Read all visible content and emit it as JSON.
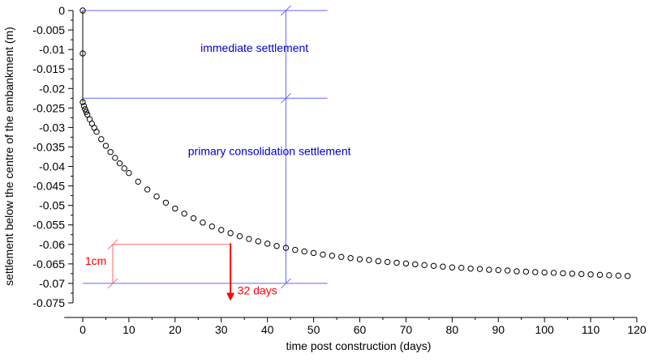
{
  "chart_data": {
    "type": "scatter",
    "title": "",
    "xlabel": "time post construction (days)",
    "ylabel": "settlement below the centre of the embankment (m)",
    "xlim": [
      -4,
      120
    ],
    "ylim": [
      -0.075,
      0
    ],
    "x_ticks": [
      0,
      10,
      20,
      30,
      40,
      50,
      60,
      70,
      80,
      90,
      100,
      110,
      120
    ],
    "x_tick_labels": [
      "0",
      "10",
      "20",
      "30",
      "40",
      "50",
      "60",
      "70",
      "80",
      "90",
      "100",
      "110",
      "120"
    ],
    "y_ticks": [
      0,
      -0.005,
      -0.01,
      -0.015,
      -0.02,
      -0.025,
      -0.03,
      -0.035,
      -0.04,
      -0.045,
      -0.05,
      -0.055,
      -0.06,
      -0.065,
      -0.07,
      -0.075
    ],
    "y_tick_labels": [
      "0",
      "-0.005",
      "-0.01",
      "-0.015",
      "-0.02",
      "-0.025",
      "-0.03",
      "-0.035",
      "-0.04",
      "-0.045",
      "-0.05",
      "-0.055",
      "-0.06",
      "-0.065",
      "-0.07",
      "-0.075"
    ],
    "grid": false,
    "series": [
      {
        "color": "#000000",
        "marker": "open-circle",
        "x": [
          0,
          0,
          0,
          0.25,
          0.5,
          0.75,
          1,
          1.5,
          2,
          2.5,
          3,
          4,
          5,
          6,
          7,
          8,
          9,
          10,
          12,
          14,
          16,
          18,
          20,
          22,
          24,
          26,
          28,
          30,
          32,
          34,
          36,
          38,
          40,
          42,
          44,
          46,
          48,
          50,
          52,
          54,
          56,
          58,
          60,
          62,
          64,
          66,
          68,
          70,
          72,
          74,
          76,
          78,
          80,
          82,
          84,
          86,
          88,
          90,
          92,
          94,
          96,
          98,
          100,
          102,
          104,
          106,
          108,
          110,
          112,
          114,
          116,
          118
        ],
        "y": [
          0,
          -0.011,
          -0.0235,
          -0.0245,
          -0.0253,
          -0.026,
          -0.0267,
          -0.0279,
          -0.029,
          -0.0301,
          -0.0311,
          -0.033,
          -0.0347,
          -0.0363,
          -0.0378,
          -0.0392,
          -0.0405,
          -0.0417,
          -0.0439,
          -0.0459,
          -0.0477,
          -0.0493,
          -0.0508,
          -0.0521,
          -0.0533,
          -0.0544,
          -0.0554,
          -0.0563,
          -0.0571,
          -0.0579,
          -0.0586,
          -0.0592,
          -0.0598,
          -0.0604,
          -0.0609,
          -0.0614,
          -0.0618,
          -0.0622,
          -0.0626,
          -0.0629,
          -0.0632,
          -0.0635,
          -0.0638,
          -0.064,
          -0.0643,
          -0.0645,
          -0.0647,
          -0.0649,
          -0.0651,
          -0.0653,
          -0.0655,
          -0.0657,
          -0.0659,
          -0.066,
          -0.0662,
          -0.0663,
          -0.0665,
          -0.0666,
          -0.0667,
          -0.0669,
          -0.067,
          -0.0671,
          -0.0672,
          -0.0673,
          -0.0674,
          -0.0675,
          -0.0676,
          -0.0677,
          -0.0678,
          -0.0679,
          -0.068,
          -0.0681
        ]
      }
    ],
    "reference_lines": [
      {
        "kind": "horizontal",
        "y": 0,
        "x_range": [
          0,
          53
        ],
        "color": "#6666ff"
      },
      {
        "kind": "horizontal",
        "y": -0.0225,
        "x_range": [
          0,
          53
        ],
        "color": "#6666ff"
      },
      {
        "kind": "horizontal",
        "y": -0.07,
        "x_range": [
          0,
          53
        ],
        "color": "#6666ff"
      },
      {
        "kind": "vertical",
        "x": 44,
        "y_range": [
          0,
          -0.07
        ],
        "color": "#6666ff"
      },
      {
        "kind": "horizontal",
        "y": -0.06,
        "x_range": [
          6.5,
          32
        ],
        "color": "#ff6666"
      },
      {
        "kind": "vertical",
        "x": 6.5,
        "y_range": [
          -0.06,
          -0.07
        ],
        "color": "#ff6666"
      }
    ],
    "annotations": [
      {
        "text": "immediate settlement",
        "x": 25.5,
        "y": -0.0106,
        "color": "#0000cc"
      },
      {
        "text": "primary consolidation settlement",
        "x": 22.8,
        "y": -0.0371,
        "color": "#0000cc"
      },
      {
        "text": "1cm",
        "x": 0.5,
        "y": -0.0652,
        "color": "#ff0000"
      },
      {
        "text": "32 days",
        "x": 33.5,
        "y": -0.0728,
        "color": "#ff0000"
      }
    ],
    "arrow": {
      "x": 32,
      "y_from": -0.0597,
      "y_to": -0.0745,
      "color": "#ff0000"
    }
  }
}
